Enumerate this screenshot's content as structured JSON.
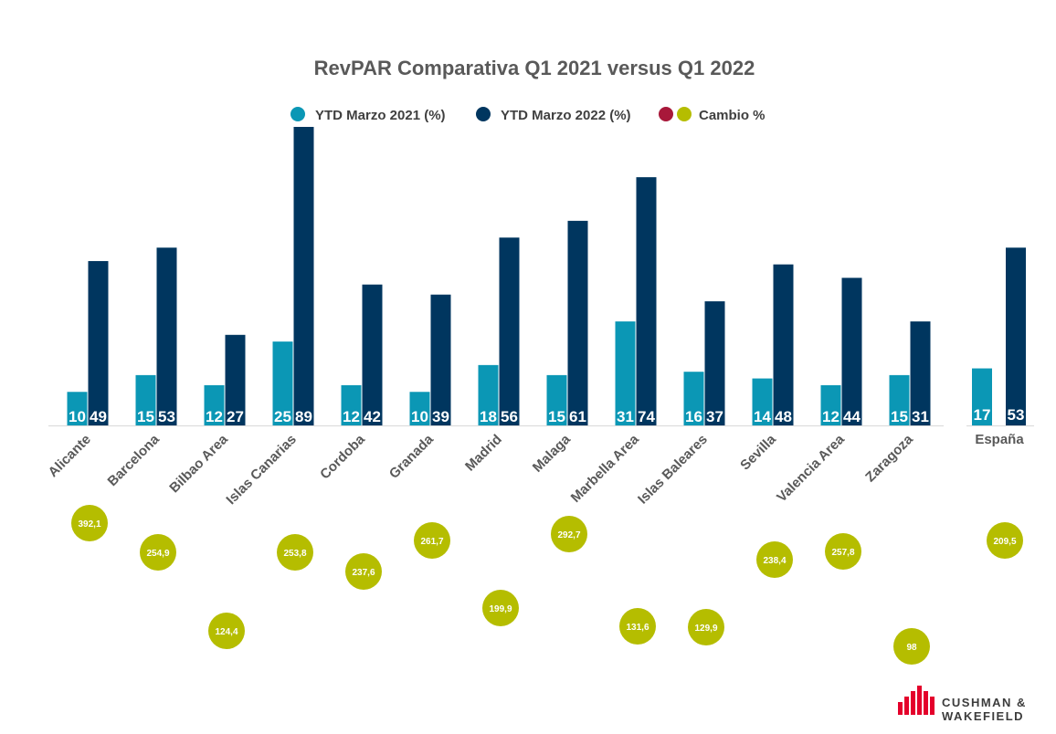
{
  "chart_data": {
    "type": "bar",
    "title": "RevPAR Comparativa Q1 2021 versus Q1 2022",
    "xlabel": "",
    "ylabel": "",
    "legend_position": "top",
    "grid": false,
    "ylim": [
      0,
      89
    ],
    "categories": [
      "Alicante",
      "Barcelona",
      "Bilbao Area",
      "Islas Canarias",
      "Cordoba",
      "Granada",
      "Madrid",
      "Malaga",
      "Marbella Area",
      "Islas Baleares",
      "Sevilla",
      "Valencia Area",
      "Zaragoza"
    ],
    "series": [
      {
        "name": "YTD Marzo 2021 (%)",
        "color": "#0b97b5",
        "values": [
          10,
          15,
          12,
          25,
          12,
          10,
          18,
          15,
          31,
          16,
          14,
          12,
          15
        ]
      },
      {
        "name": "YTD Marzo 2022 (%)",
        "color": "#00365f",
        "values": [
          49,
          53,
          27,
          89,
          42,
          39,
          56,
          61,
          74,
          37,
          48,
          44,
          31
        ]
      }
    ],
    "change": {
      "name": "Cambio %",
      "legend_colors": [
        "#a8183a",
        "#b5bd00"
      ],
      "color": "#b5bd00",
      "values": [
        392.1,
        254.9,
        124.4,
        253.8,
        237.6,
        261.7,
        199.9,
        292.7,
        131.6,
        129.9,
        238.4,
        257.8,
        98
      ],
      "labels": [
        "392,1",
        "254,9",
        "124,4",
        "253,8",
        "237,6",
        "261,7",
        "199,9",
        "292,7",
        "131,6",
        "129,9",
        "238,4",
        "257,8",
        "98"
      ]
    },
    "espana": {
      "category": "España",
      "values": [
        17,
        53
      ],
      "change_value": 209.5,
      "change_label": "209,5"
    }
  },
  "logo": {
    "line1": "CUSHMAN &",
    "line2": "WAKEFIELD",
    "color": "#e4002b"
  }
}
